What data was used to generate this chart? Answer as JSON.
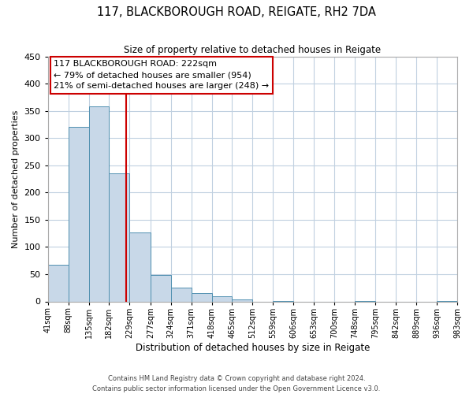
{
  "title": "117, BLACKBOROUGH ROAD, REIGATE, RH2 7DA",
  "subtitle": "Size of property relative to detached houses in Reigate",
  "xlabel": "Distribution of detached houses by size in Reigate",
  "ylabel": "Number of detached properties",
  "bar_color": "#c8d8e8",
  "bar_edge_color": "#5090b0",
  "vline_x": 222,
  "vline_color": "#cc0000",
  "annotation_box_color": "#cc0000",
  "bin_edges": [
    41,
    88,
    135,
    182,
    229,
    277,
    324,
    371,
    418,
    465,
    512,
    559,
    606,
    653,
    700,
    748,
    795,
    842,
    889,
    936,
    983
  ],
  "bar_heights": [
    67,
    320,
    358,
    235,
    127,
    49,
    25,
    15,
    10,
    3,
    0,
    1,
    0,
    0,
    0,
    1,
    0,
    0,
    0,
    1
  ],
  "ylim": [
    0,
    450
  ],
  "yticks": [
    0,
    50,
    100,
    150,
    200,
    250,
    300,
    350,
    400,
    450
  ],
  "annotation_title": "117 BLACKBOROUGH ROAD: 222sqm",
  "annotation_line1": "← 79% of detached houses are smaller (954)",
  "annotation_line2": "21% of semi-detached houses are larger (248) →",
  "footer_line1": "Contains HM Land Registry data © Crown copyright and database right 2024.",
  "footer_line2": "Contains public sector information licensed under the Open Government Licence v3.0.",
  "background_color": "#ffffff",
  "grid_color": "#c0d0e0"
}
